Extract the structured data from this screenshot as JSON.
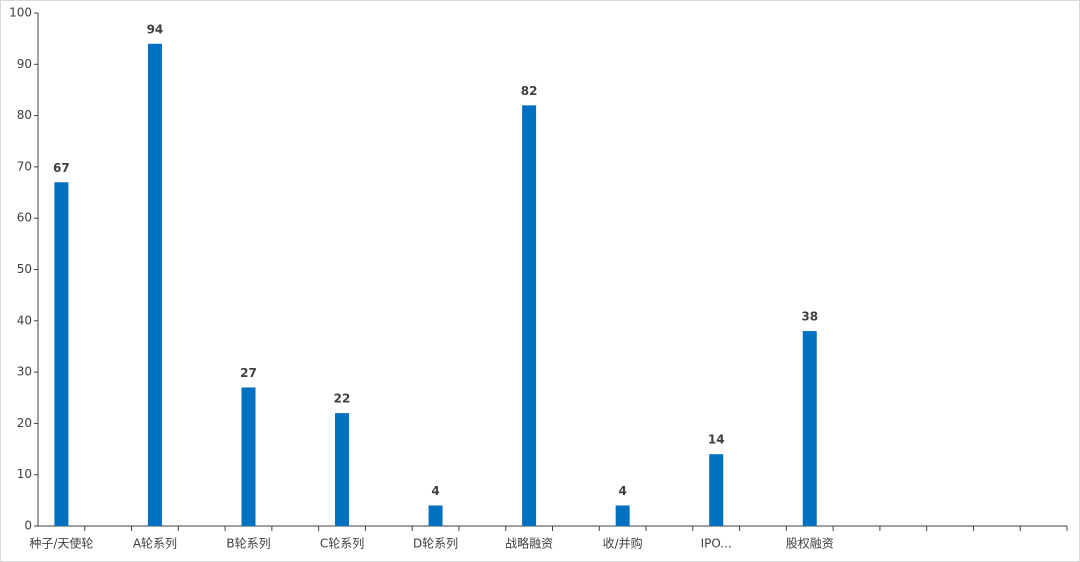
{
  "chart_data": {
    "type": "bar",
    "categories": [
      "种子/天使轮",
      null,
      "A轮系列",
      null,
      "B轮系列",
      null,
      "C轮系列",
      null,
      "D轮系列",
      null,
      "战略融资",
      null,
      "收/并购",
      null,
      "IPO...",
      null,
      "股权融资",
      null,
      null,
      null,
      null,
      null
    ],
    "values": [
      67,
      null,
      94,
      null,
      27,
      null,
      22,
      null,
      4,
      null,
      82,
      null,
      4,
      null,
      14,
      null,
      38,
      null,
      null,
      null,
      null,
      null
    ],
    "color": "#0070c0",
    "ylim": [
      0,
      100
    ],
    "yticks": [
      0,
      10,
      20,
      30,
      40,
      50,
      60,
      70,
      80,
      90,
      100
    ]
  }
}
